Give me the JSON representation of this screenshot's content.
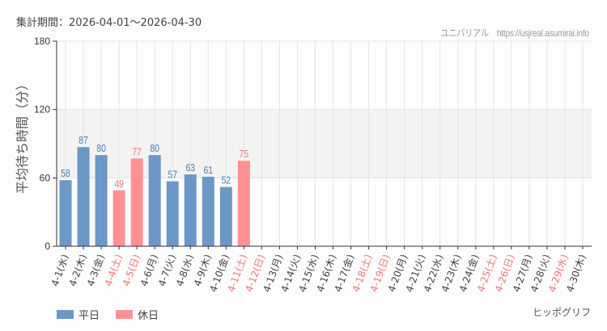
{
  "header": {
    "period": "集計期間：2026-04-01～2026-04-30",
    "credit": "ユニバリアル　https://usjreal.asumirai.info"
  },
  "footer": {
    "attraction": "ヒッポグリフ"
  },
  "colors": {
    "weekday": "#6b98c6",
    "holiday": "#ff9195",
    "weekday_label": "#4a7fb5",
    "holiday_label": "#f17479",
    "band": "#f3f3f2"
  },
  "chart_data": {
    "type": "bar",
    "title": "",
    "xlabel": "",
    "ylabel": "平均待ち時間（分）",
    "ylim": [
      0,
      180
    ],
    "yticks": [
      0,
      60,
      120,
      180
    ],
    "grid": true,
    "shaded_band": [
      60,
      120
    ],
    "legend_position": "bottom-left",
    "legend": [
      {
        "name": "平日",
        "color": "#6b98c6"
      },
      {
        "name": "休日",
        "color": "#ff9195"
      }
    ],
    "categories": [
      "4-1(水)",
      "4-2(木)",
      "4-3(金)",
      "4-4(土)",
      "4-5(日)",
      "4-6(月)",
      "4-7(火)",
      "4-8(水)",
      "4-9(木)",
      "4-10(金)",
      "4-11(土)",
      "4-12(日)",
      "4-13(月)",
      "4-14(火)",
      "4-15(水)",
      "4-16(木)",
      "4-17(金)",
      "4-18(土)",
      "4-19(日)",
      "4-20(月)",
      "4-21(火)",
      "4-22(水)",
      "4-23(木)",
      "4-24(金)",
      "4-25(土)",
      "4-26(日)",
      "4-27(月)",
      "4-28(火)",
      "4-29(水)",
      "4-30(木)"
    ],
    "holiday": [
      false,
      false,
      false,
      true,
      true,
      false,
      false,
      false,
      false,
      false,
      true,
      true,
      false,
      false,
      false,
      false,
      false,
      true,
      true,
      false,
      false,
      false,
      false,
      false,
      true,
      true,
      false,
      false,
      true,
      false
    ],
    "values": [
      58,
      87,
      80,
      49,
      77,
      80,
      57,
      63,
      61,
      52,
      75,
      null,
      null,
      null,
      null,
      null,
      null,
      null,
      null,
      null,
      null,
      null,
      null,
      null,
      null,
      null,
      null,
      null,
      null,
      null
    ],
    "series": [
      {
        "name": "平日",
        "values": [
          58,
          87,
          80,
          null,
          null,
          80,
          57,
          63,
          61,
          52,
          null,
          null,
          null,
          null,
          null,
          null,
          null,
          null,
          null,
          null,
          null,
          null,
          null,
          null,
          null,
          null,
          null,
          null,
          null,
          null
        ]
      },
      {
        "name": "休日",
        "values": [
          null,
          null,
          null,
          49,
          77,
          null,
          null,
          null,
          null,
          null,
          75,
          null,
          null,
          null,
          null,
          null,
          null,
          null,
          null,
          null,
          null,
          null,
          null,
          null,
          null,
          null,
          null,
          null,
          null,
          null
        ]
      }
    ]
  }
}
